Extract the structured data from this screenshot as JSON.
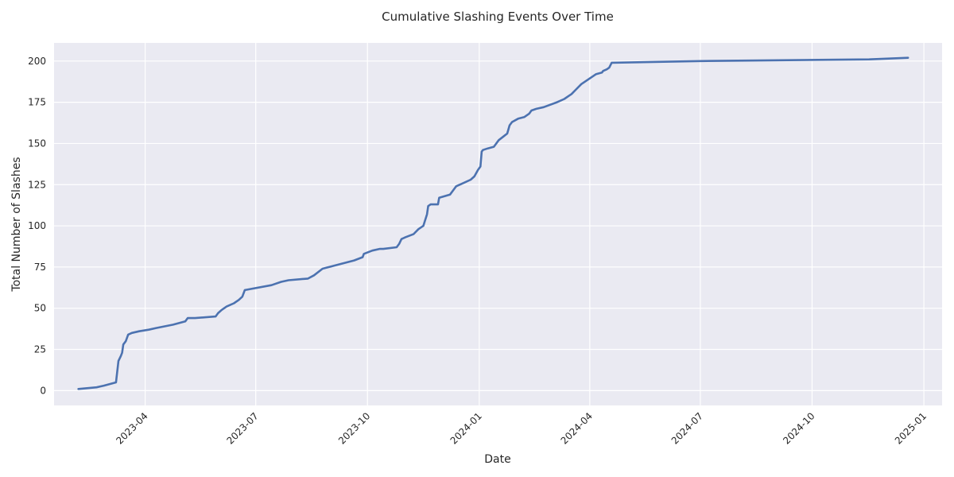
{
  "chart_data": {
    "type": "line",
    "title": "Cumulative Slashing Events Over Time",
    "xlabel": "Date",
    "ylabel": "Total Number of Slashes",
    "xlim": [
      "2023-01-16",
      "2025-01-16"
    ],
    "ylim": [
      -9,
      211
    ],
    "y_ticks": [
      0,
      25,
      50,
      75,
      100,
      125,
      150,
      175,
      200
    ],
    "x_ticks": [
      "2023-04-01",
      "2023-07-01",
      "2023-10-01",
      "2024-01-01",
      "2024-04-01",
      "2024-07-01",
      "2024-10-01",
      "2025-01-01"
    ],
    "x_tick_labels": [
      "2023-04",
      "2023-07",
      "2023-10",
      "2024-01",
      "2024-04",
      "2024-07",
      "2024-10",
      "2025-01"
    ],
    "grid": true,
    "line_color": "#4c72b0",
    "background_color": "#eaeaf2",
    "series": [
      {
        "x": [
          "2023-02-05",
          "2023-02-20",
          "2023-02-26",
          "2023-03-08",
          "2023-03-10",
          "2023-03-12",
          "2023-03-13",
          "2023-03-14",
          "2023-03-16",
          "2023-03-18",
          "2023-03-21",
          "2023-03-27",
          "2023-04-04",
          "2023-04-10",
          "2023-04-24",
          "2023-05-04",
          "2023-05-06",
          "2023-05-12",
          "2023-05-29",
          "2023-05-31",
          "2023-06-03",
          "2023-06-07",
          "2023-06-13",
          "2023-06-17",
          "2023-06-20",
          "2023-06-22",
          "2023-07-14",
          "2023-07-22",
          "2023-07-28",
          "2023-08-13",
          "2023-08-18",
          "2023-08-25",
          "2023-09-20",
          "2023-09-27",
          "2023-09-28",
          "2023-10-05",
          "2023-10-11",
          "2023-10-13",
          "2023-10-14",
          "2023-10-25",
          "2023-10-27",
          "2023-10-29",
          "2023-11-01",
          "2023-11-08",
          "2023-11-12",
          "2023-11-16",
          "2023-11-19",
          "2023-11-20",
          "2023-11-22",
          "2023-11-28",
          "2023-11-29",
          "2023-12-08",
          "2023-12-11",
          "2023-12-13",
          "2023-12-19",
          "2023-12-25",
          "2023-12-28",
          "2023-12-31",
          "2024-01-02",
          "2024-01-03",
          "2024-01-04",
          "2024-01-08",
          "2024-01-13",
          "2024-01-17",
          "2024-01-24",
          "2024-01-26",
          "2024-01-28",
          "2024-02-02",
          "2024-02-07",
          "2024-02-11",
          "2024-02-13",
          "2024-02-17",
          "2024-02-23",
          "2024-03-05",
          "2024-03-11",
          "2024-03-15",
          "2024-03-17",
          "2024-03-21",
          "2024-03-25",
          "2024-03-29",
          "2024-04-06",
          "2024-04-11",
          "2024-04-12",
          "2024-04-15",
          "2024-04-17",
          "2024-04-19",
          "2024-07-01",
          "2024-11-17",
          "2024-12-19"
        ],
        "y": [
          1,
          2,
          3,
          5,
          18,
          21,
          23,
          28,
          30,
          34,
          35,
          36,
          37,
          38,
          40,
          42,
          44,
          44,
          45,
          47,
          49,
          51,
          53,
          55,
          57,
          61,
          64,
          66,
          67,
          68,
          70,
          74,
          79,
          81,
          83,
          85,
          86,
          86,
          86,
          87,
          89,
          92,
          93,
          95,
          98,
          100,
          107,
          112,
          113,
          113,
          117,
          119,
          122,
          124,
          126,
          128,
          130,
          134,
          136,
          145,
          146,
          147,
          148,
          152,
          156,
          161,
          163,
          165,
          166,
          168,
          170,
          171,
          172,
          175,
          177,
          179,
          180,
          183,
          186,
          188,
          192,
          193,
          194,
          195,
          196,
          199,
          200,
          201,
          202
        ]
      }
    ]
  }
}
